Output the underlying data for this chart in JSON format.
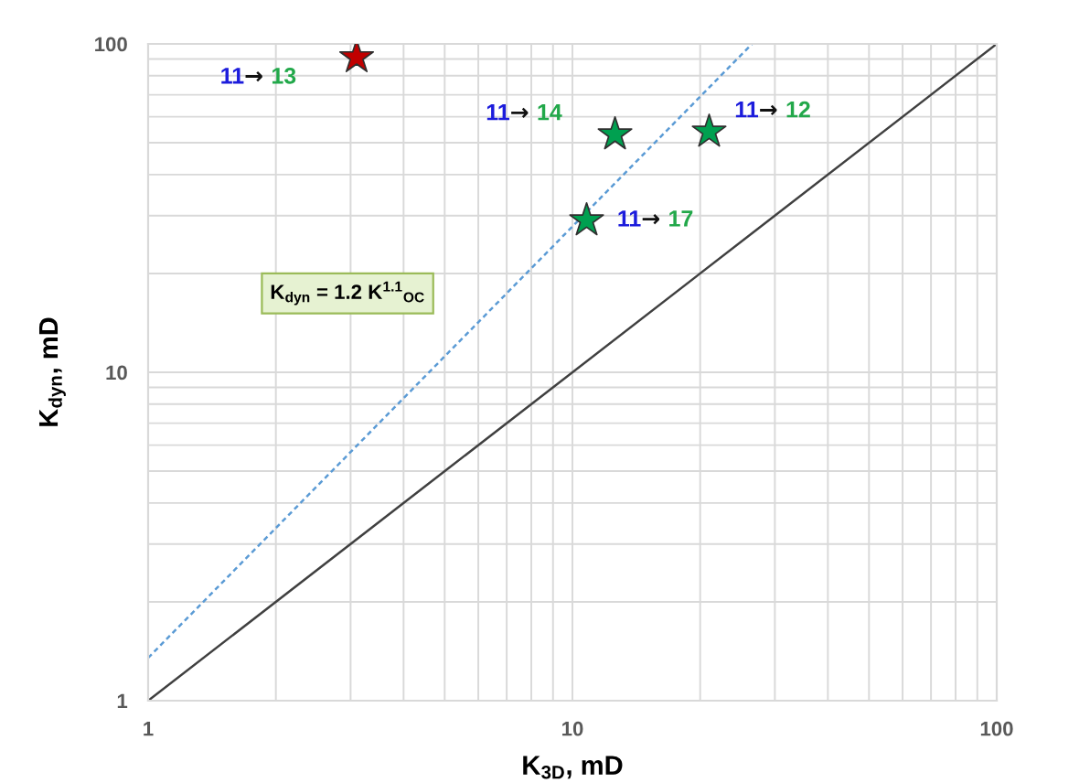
{
  "chart_data": {
    "type": "scatter",
    "xlabel": "K$_{3D}$, mD",
    "ylabel": "K$_{dyn}$, mD",
    "log": "xy",
    "grid": true,
    "xlim": [
      1,
      100
    ],
    "ylim": [
      1,
      100
    ],
    "xticks": [
      1,
      {
        "value": 2,
        "label": null
      },
      {
        "value": 3,
        "label": null
      },
      {
        "value": 4,
        "label": null
      },
      {
        "value": 5,
        "label": null
      },
      {
        "value": 6,
        "label": null
      },
      {
        "value": 7,
        "label": null
      },
      {
        "value": 8,
        "label": null
      },
      {
        "value": 9,
        "label": null
      },
      10,
      {
        "value": 20,
        "label": null
      },
      {
        "value": 30,
        "label": null
      },
      {
        "value": 40,
        "label": null
      },
      {
        "value": 50,
        "label": null
      },
      {
        "value": 60,
        "label": null
      },
      {
        "value": 70,
        "label": null
      },
      {
        "value": 80,
        "label": null
      },
      {
        "value": 90,
        "label": null
      },
      100
    ],
    "yticks": [
      1,
      {
        "value": 2,
        "label": null
      },
      {
        "value": 3,
        "label": null
      },
      {
        "value": 4,
        "label": null
      },
      {
        "value": 5,
        "label": null
      },
      {
        "value": 6,
        "label": null
      },
      {
        "value": 7,
        "label": null
      },
      {
        "value": 8,
        "label": null
      },
      {
        "value": 9,
        "label": null
      },
      10,
      {
        "value": 20,
        "label": null
      },
      {
        "value": 30,
        "label": null
      },
      {
        "value": 40,
        "label": null
      },
      {
        "value": 50,
        "label": null
      },
      {
        "value": 60,
        "label": null
      },
      {
        "value": 70,
        "label": null
      },
      {
        "value": 80,
        "label": null
      },
      {
        "value": 90,
        "label": null
      },
      100
    ],
    "series": [
      {
        "type": "line",
        "x": [
          1,
          100
        ],
        "values": [
          1,
          100
        ],
        "color": "#404040",
        "line_style": "solid"
      },
      {
        "type": "line",
        "x": [
          1,
          26.5
        ],
        "values": [
          1.35,
          100
        ],
        "color": "#5b9bd5",
        "line_style": "dashed"
      },
      {
        "x": [
          3.1,
          12.6,
          21,
          10.8
        ],
        "values": [
          91,
          53,
          54,
          29
        ],
        "colors": [
          "#c00000",
          "#00a050",
          "#00a050",
          "#00a050"
        ],
        "marker": "star"
      }
    ],
    "annotations": [
      {
        "text": "11→ 13",
        "x": 3.1,
        "y": 91
      },
      {
        "text": "11→ 14",
        "x": 12.6,
        "y": 53
      },
      {
        "text": "11→ 12",
        "x": 21,
        "y": 54
      },
      {
        "text": "11→ 17",
        "x": 10.8,
        "y": 29
      },
      "K$_{dyn}$ = 1.2 K$^{1.1}$$_{OC}$"
    ]
  }
}
